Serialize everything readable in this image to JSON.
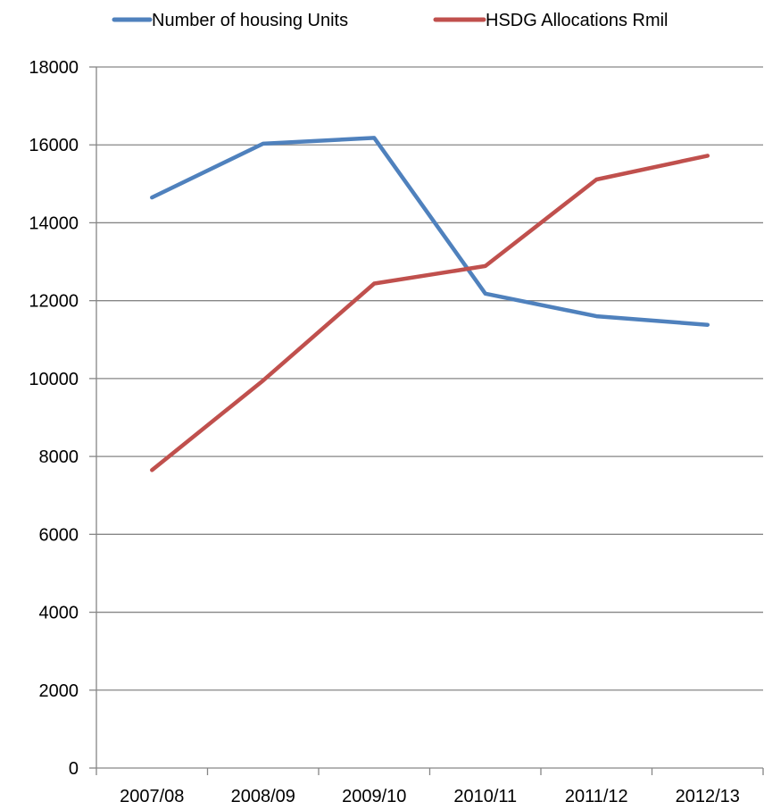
{
  "chart_data": {
    "type": "line",
    "title": "",
    "xlabel": "",
    "ylabel": "",
    "categories": [
      "2007/08",
      "2008/09",
      "2009/10",
      "2010/11",
      "2011/12",
      "2012/13"
    ],
    "series": [
      {
        "name": "Number of housing Units",
        "color": "#4F81BD",
        "values": [
          14650,
          16030,
          16180,
          12180,
          11600,
          11380
        ]
      },
      {
        "name": "HSDG Allocations Rmil",
        "color": "#C0504D",
        "values": [
          7650,
          9950,
          12440,
          12890,
          15110,
          15720
        ]
      }
    ],
    "ylim": [
      0,
      18000
    ],
    "yticks": [
      0,
      2000,
      4000,
      6000,
      8000,
      10000,
      12000,
      14000,
      16000,
      18000
    ],
    "grid": true,
    "legend_position": "top"
  }
}
